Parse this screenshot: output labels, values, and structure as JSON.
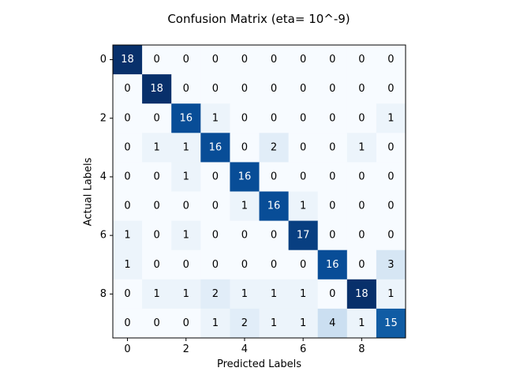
{
  "chart_data": {
    "type": "heatmap",
    "title": "Confusion Matrix (eta= 10^-9)",
    "xlabel": "Predicted Labels",
    "ylabel": "Actual Labels",
    "colormap": "Blues",
    "vmin": 0,
    "vmax": 18,
    "x_ticks": [
      "0",
      "2",
      "4",
      "6",
      "8"
    ],
    "y_ticks": [
      "0",
      "2",
      "4",
      "6",
      "8"
    ],
    "x_tick_values": [
      0,
      2,
      4,
      6,
      8
    ],
    "y_tick_values": [
      0,
      2,
      4,
      6,
      8
    ],
    "matrix": [
      [
        18,
        0,
        0,
        0,
        0,
        0,
        0,
        0,
        0,
        0
      ],
      [
        0,
        18,
        0,
        0,
        0,
        0,
        0,
        0,
        0,
        0
      ],
      [
        0,
        0,
        16,
        1,
        0,
        0,
        0,
        0,
        0,
        1
      ],
      [
        0,
        1,
        1,
        16,
        0,
        2,
        0,
        0,
        1,
        0
      ],
      [
        0,
        0,
        1,
        0,
        16,
        0,
        0,
        0,
        0,
        0
      ],
      [
        0,
        0,
        0,
        0,
        1,
        16,
        1,
        0,
        0,
        0
      ],
      [
        1,
        0,
        1,
        0,
        0,
        0,
        17,
        0,
        0,
        0
      ],
      [
        1,
        0,
        0,
        0,
        0,
        0,
        0,
        16,
        0,
        3
      ],
      [
        0,
        1,
        1,
        2,
        1,
        1,
        1,
        0,
        18,
        1
      ],
      [
        0,
        0,
        0,
        1,
        2,
        1,
        1,
        4,
        1,
        15
      ]
    ]
  }
}
